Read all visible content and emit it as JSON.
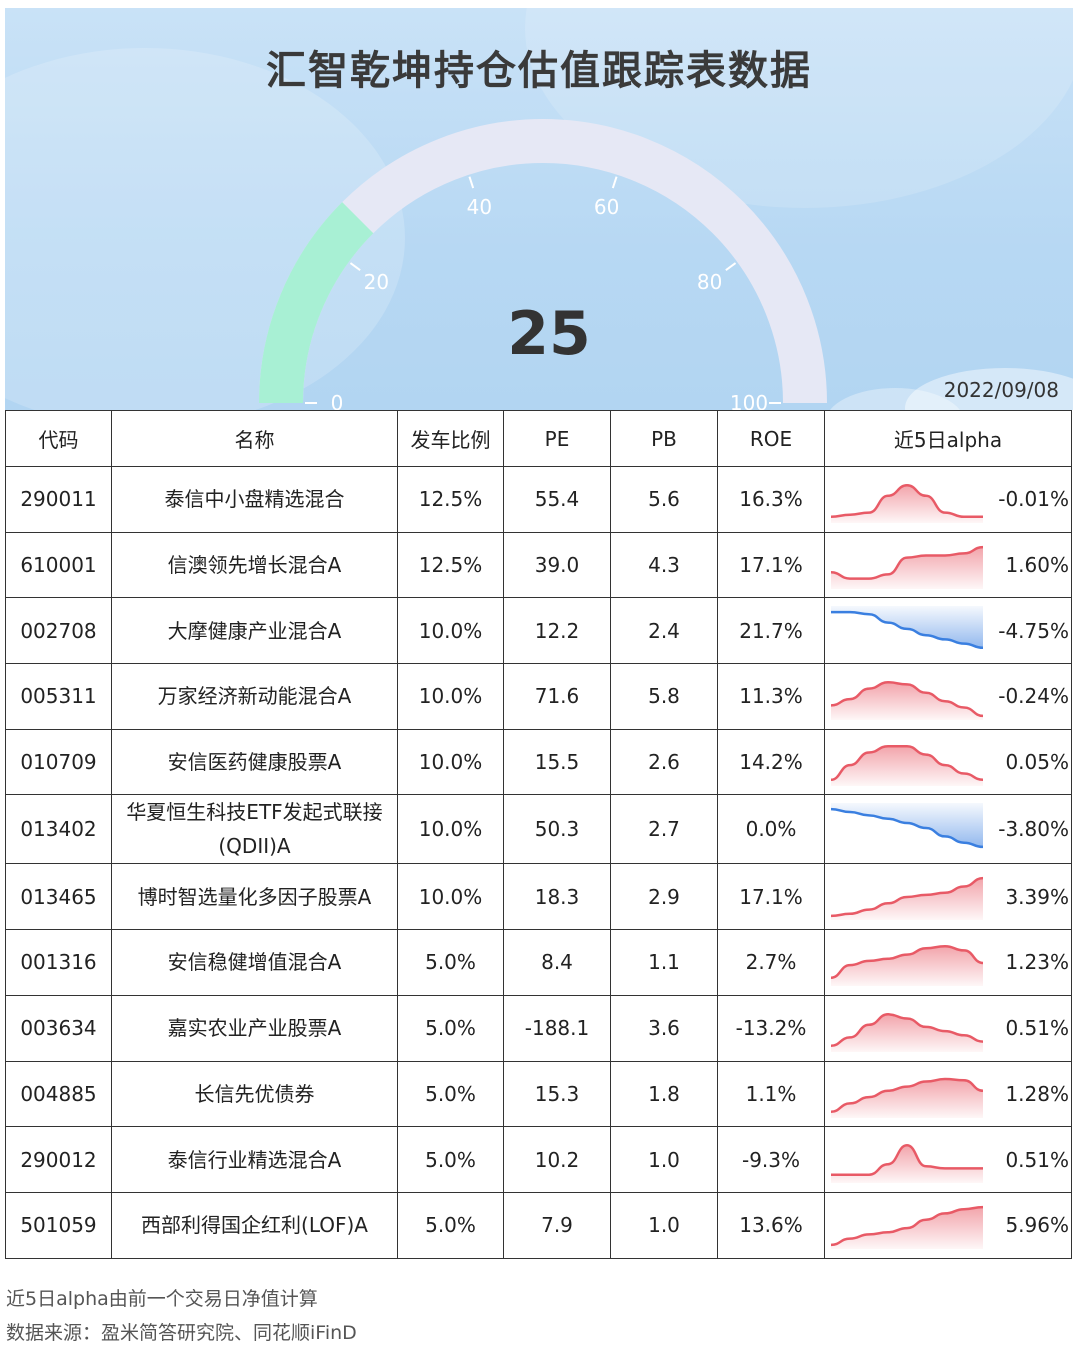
{
  "title": "汇智乾坤持仓估值跟踪表数据",
  "date": "2022/09/08",
  "gauge": {
    "value": 25,
    "min": 0,
    "max": 100,
    "ticks": [
      "0",
      "20",
      "40",
      "60",
      "80",
      "100"
    ],
    "fill_color": "#a8f0d4",
    "track_color": "#e6e8f5"
  },
  "table": {
    "headers": [
      "代码",
      "名称",
      "发车比例",
      "PE",
      "PB",
      "ROE",
      "近5日alpha"
    ],
    "rows": [
      {
        "code": "290011",
        "name": "泰信中小盘精选混合",
        "ratio": "12.5%",
        "pe": "55.4",
        "pb": "5.6",
        "roe": "16.3%",
        "alpha": "-0.01%",
        "spark": [
          0.1,
          0.15,
          0.2,
          0.6,
          0.85,
          0.6,
          0.2,
          0.1,
          0.1
        ],
        "trend": "mixed"
      },
      {
        "code": "610001",
        "name": "信澳领先增长混合A",
        "ratio": "12.5%",
        "pe": "39.0",
        "pb": "4.3",
        "roe": "17.1%",
        "alpha": "1.60%",
        "spark": [
          0.35,
          0.2,
          0.2,
          0.3,
          0.7,
          0.75,
          0.75,
          0.8,
          0.95
        ],
        "trend": "mixed"
      },
      {
        "code": "002708",
        "name": "大摩健康产业混合A",
        "ratio": "10.0%",
        "pe": "12.2",
        "pb": "2.4",
        "roe": "21.7%",
        "alpha": "-4.75%",
        "spark": [
          0.95,
          0.95,
          0.9,
          0.7,
          0.55,
          0.4,
          0.3,
          0.2,
          0.1
        ],
        "trend": "down"
      },
      {
        "code": "005311",
        "name": "万家经济新动能混合A",
        "ratio": "10.0%",
        "pe": "71.6",
        "pb": "5.8",
        "roe": "11.3%",
        "alpha": "-0.24%",
        "spark": [
          0.3,
          0.45,
          0.7,
          0.85,
          0.8,
          0.6,
          0.4,
          0.25,
          0.05
        ],
        "trend": "mixed"
      },
      {
        "code": "010709",
        "name": "安信医药健康股票A",
        "ratio": "10.0%",
        "pe": "15.5",
        "pb": "2.6",
        "roe": "14.2%",
        "alpha": "0.05%",
        "spark": [
          0.1,
          0.45,
          0.75,
          0.9,
          0.9,
          0.7,
          0.45,
          0.25,
          0.1
        ],
        "trend": "up"
      },
      {
        "code": "013402",
        "name": "华夏恒生科技ETF发起式联接(QDII)A",
        "ratio": "10.0%",
        "pe": "50.3",
        "pb": "2.7",
        "roe": "0.0%",
        "alpha": "-3.80%",
        "spark": [
          0.95,
          0.88,
          0.8,
          0.72,
          0.62,
          0.5,
          0.3,
          0.15,
          0.05
        ],
        "trend": "down"
      },
      {
        "code": "013465",
        "name": "博时智选量化多因子股票A",
        "ratio": "10.0%",
        "pe": "18.3",
        "pb": "2.9",
        "roe": "17.1%",
        "alpha": "3.39%",
        "spark": [
          0.05,
          0.1,
          0.2,
          0.35,
          0.5,
          0.55,
          0.6,
          0.75,
          0.95
        ],
        "trend": "up"
      },
      {
        "code": "001316",
        "name": "安信稳健增值混合A",
        "ratio": "5.0%",
        "pe": "8.4",
        "pb": "1.1",
        "roe": "2.7%",
        "alpha": "1.23%",
        "spark": [
          0.15,
          0.45,
          0.55,
          0.6,
          0.7,
          0.85,
          0.9,
          0.8,
          0.5
        ],
        "trend": "up"
      },
      {
        "code": "003634",
        "name": "嘉实农业产业股票A",
        "ratio": "5.0%",
        "pe": "-188.1",
        "pb": "3.6",
        "roe": "-13.2%",
        "alpha": "0.51%",
        "spark": [
          0.1,
          0.3,
          0.6,
          0.85,
          0.75,
          0.55,
          0.45,
          0.35,
          0.2
        ],
        "trend": "up"
      },
      {
        "code": "004885",
        "name": "长信先优债券",
        "ratio": "5.0%",
        "pe": "15.3",
        "pb": "1.8",
        "roe": "1.1%",
        "alpha": "1.28%",
        "spark": [
          0.1,
          0.3,
          0.45,
          0.6,
          0.7,
          0.82,
          0.88,
          0.85,
          0.6
        ],
        "trend": "up"
      },
      {
        "code": "290012",
        "name": "泰信行业精选混合A",
        "ratio": "5.0%",
        "pe": "10.2",
        "pb": "1.0",
        "roe": "-9.3%",
        "alpha": "0.51%",
        "spark": [
          0.15,
          0.15,
          0.15,
          0.4,
          0.85,
          0.35,
          0.3,
          0.3,
          0.3
        ],
        "trend": "mixed"
      },
      {
        "code": "501059",
        "name": "西部利得国企红利(LOF)A",
        "ratio": "5.0%",
        "pe": "7.9",
        "pb": "1.0",
        "roe": "13.6%",
        "alpha": "5.96%",
        "spark": [
          0.05,
          0.2,
          0.3,
          0.35,
          0.45,
          0.65,
          0.8,
          0.9,
          0.95
        ],
        "trend": "up"
      }
    ]
  },
  "footnotes": [
    "近5日alpha由前一个交易日净值计算",
    "数据来源：盈米简答研究院、同花顺iFinD"
  ]
}
